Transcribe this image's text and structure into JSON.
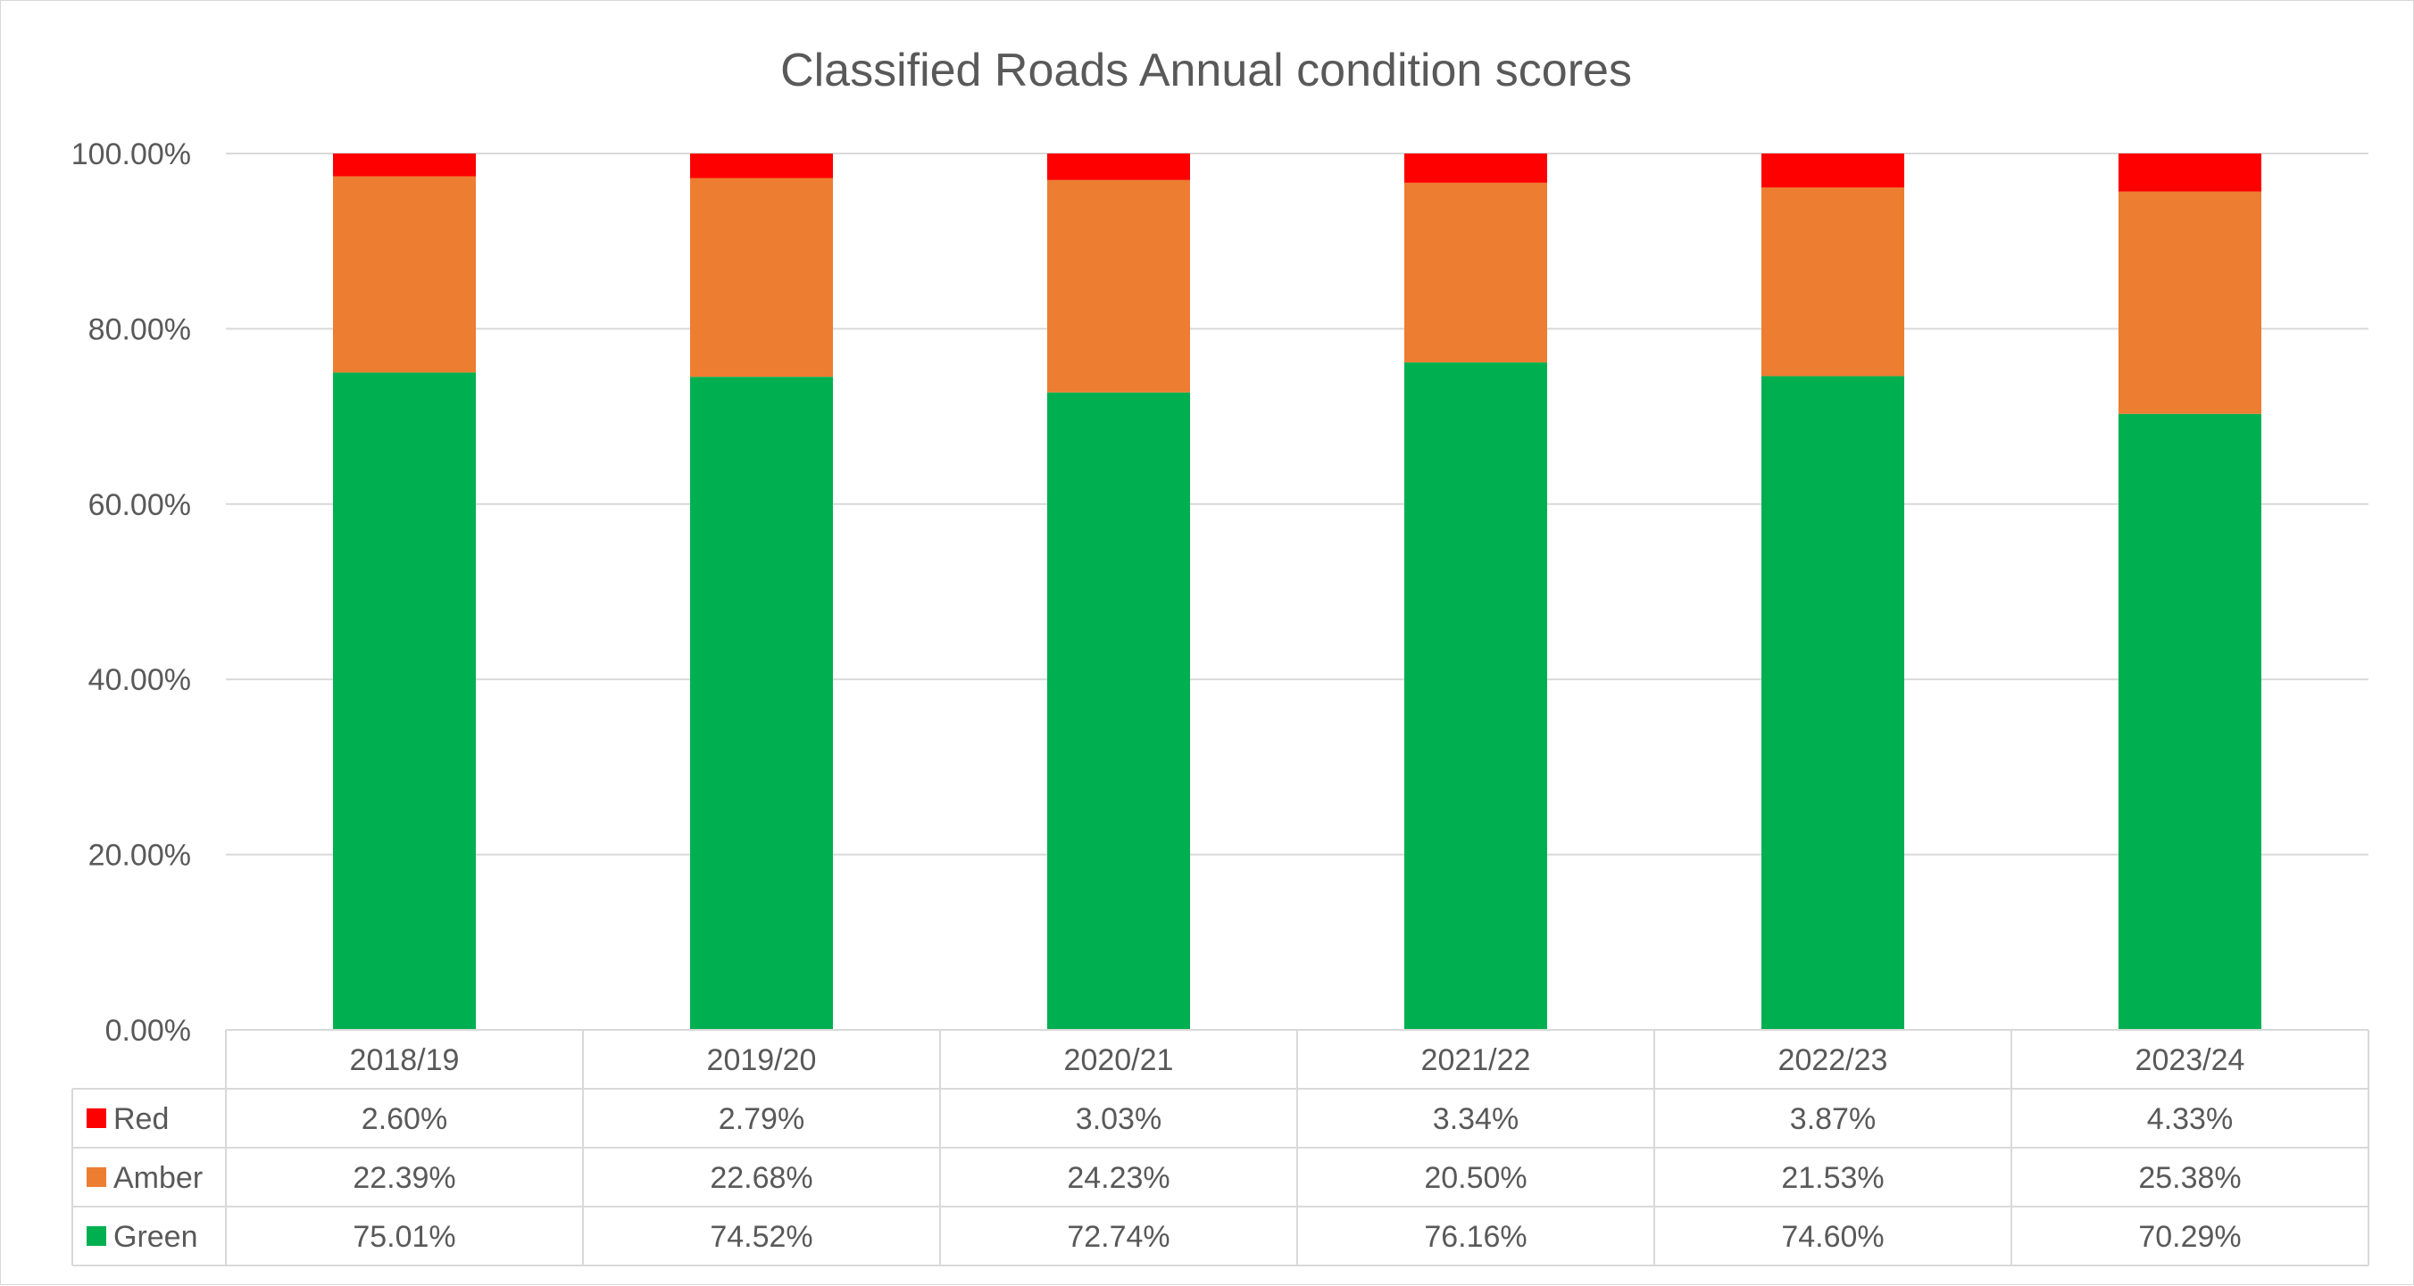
{
  "chart_data": {
    "type": "bar",
    "stacked": true,
    "title": "Classified Roads Annual condition scores",
    "categories": [
      "2018/19",
      "2019/20",
      "2020/21",
      "2021/22",
      "2022/23",
      "2023/24"
    ],
    "y_ticks": [
      "0.00%",
      "20.00%",
      "40.00%",
      "60.00%",
      "80.00%",
      "100.00%"
    ],
    "ylim": [
      0,
      100
    ],
    "grid": true,
    "legend": "data table",
    "series": [
      {
        "name": "Red",
        "color": "#ff0000",
        "values": [
          2.6,
          2.79,
          3.03,
          3.34,
          3.87,
          4.33
        ],
        "labels": [
          "2.60%",
          "2.79%",
          "3.03%",
          "3.34%",
          "3.87%",
          "4.33%"
        ]
      },
      {
        "name": "Amber",
        "color": "#ed7d31",
        "values": [
          22.39,
          22.68,
          24.23,
          20.5,
          21.53,
          25.38
        ],
        "labels": [
          "22.39%",
          "22.68%",
          "24.23%",
          "20.50%",
          "21.53%",
          "25.38%"
        ]
      },
      {
        "name": "Green",
        "color": "#00b050",
        "values": [
          75.01,
          74.52,
          72.74,
          76.16,
          74.6,
          70.29
        ],
        "labels": [
          "75.01%",
          "74.52%",
          "72.74%",
          "76.16%",
          "74.60%",
          "70.29%"
        ]
      }
    ]
  }
}
